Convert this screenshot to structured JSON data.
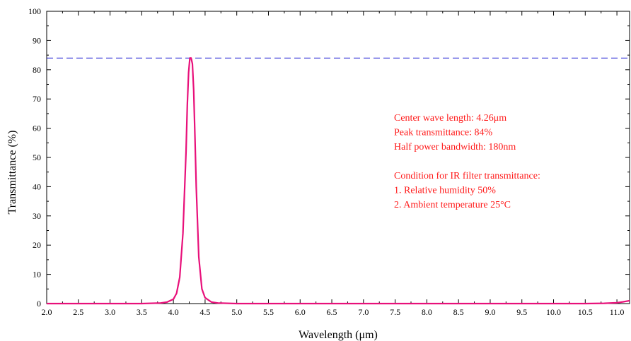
{
  "chart_data": {
    "type": "line",
    "xlabel": "Wavelength (μm)",
    "ylabel": "Transmittance (%)",
    "xlim": [
      2.0,
      11.2
    ],
    "ylim": [
      0,
      100
    ],
    "x_ticks": [
      "2.0",
      "2.5",
      "3.0",
      "3.5",
      "4.0",
      "4.5",
      "5.0",
      "5.5",
      "6.0",
      "6.5",
      "7.0",
      "7.5",
      "8.0",
      "8.5",
      "9.0",
      "9.5",
      "10.0",
      "10.5",
      "11.0"
    ],
    "y_ticks": [
      "0",
      "10",
      "20",
      "30",
      "40",
      "50",
      "60",
      "70",
      "80",
      "90",
      "100"
    ],
    "grid": false,
    "colors": {
      "series": "#e8107a",
      "reference": "#2a2ad6",
      "annotation": "#ff1a1a"
    },
    "series": [
      {
        "x": [
          2.0,
          2.5,
          3.0,
          3.5,
          3.8,
          3.9,
          4.0,
          4.05,
          4.1,
          4.15,
          4.2,
          4.22,
          4.24,
          4.26,
          4.28,
          4.3,
          4.32,
          4.34,
          4.36,
          4.4,
          4.45,
          4.5,
          4.6,
          4.7,
          5.0,
          6.0,
          7.0,
          8.0,
          9.0,
          10.0,
          10.5,
          10.8,
          11.0,
          11.1,
          11.2
        ],
        "y": [
          0,
          0,
          0,
          0,
          0.2,
          0.5,
          1.5,
          3.5,
          9,
          24,
          52,
          68,
          79,
          84,
          84,
          82,
          73,
          57,
          40,
          16,
          5,
          2,
          0.5,
          0.2,
          0,
          0,
          0,
          0,
          0,
          0,
          0,
          0.1,
          0.3,
          0.6,
          1.0
        ]
      }
    ],
    "reference_line": {
      "y": 84,
      "style": "dashed"
    },
    "annotations": [
      "Center wave length: 4.26μm",
      "Peak transmittance: 84%",
      "Half power bandwidth: 180nm",
      "",
      "Condition for IR filter transmittance:",
      "1. Relative humidity 50%",
      "2. Ambient temperature 25°C"
    ]
  }
}
